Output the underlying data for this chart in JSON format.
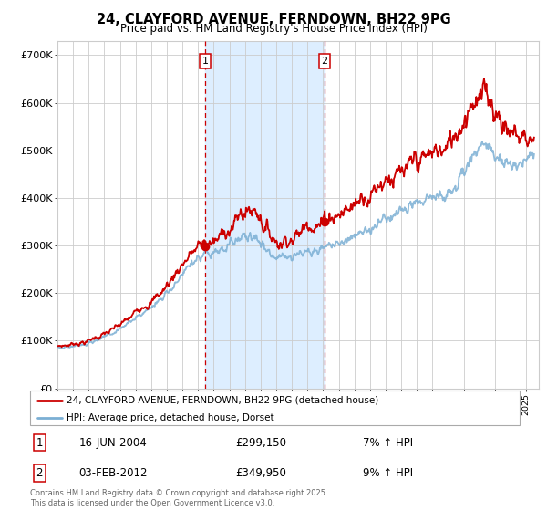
{
  "title": "24, CLAYFORD AVENUE, FERNDOWN, BH22 9PG",
  "subtitle": "Price paid vs. HM Land Registry's House Price Index (HPI)",
  "ylabel_ticks": [
    "£0",
    "£100K",
    "£200K",
    "£300K",
    "£400K",
    "£500K",
    "£600K",
    "£700K"
  ],
  "ytick_values": [
    0,
    100000,
    200000,
    300000,
    400000,
    500000,
    600000,
    700000
  ],
  "ylim": [
    0,
    730000
  ],
  "xlim_start": 1995.0,
  "xlim_end": 2025.8,
  "sale1_date": 2004.46,
  "sale1_price": 299150,
  "sale1_text": "16-JUN-2004",
  "sale1_hpi": "7% ↑ HPI",
  "sale2_date": 2012.09,
  "sale2_price": 349950,
  "sale2_text": "03-FEB-2012",
  "sale2_hpi": "9% ↑ HPI",
  "legend_line1": "24, CLAYFORD AVENUE, FERNDOWN, BH22 9PG (detached house)",
  "legend_line2": "HPI: Average price, detached house, Dorset",
  "footer": "Contains HM Land Registry data © Crown copyright and database right 2025.\nThis data is licensed under the Open Government Licence v3.0.",
  "line_color_red": "#cc0000",
  "line_color_blue": "#7bafd4",
  "vline_color": "#cc0000",
  "shade_color": "#ddeeff",
  "background_color": "#ffffff",
  "grid_color": "#cccccc",
  "hpi_key_years": [
    1995,
    1996,
    1997,
    1998,
    1999,
    2000,
    2001,
    2002,
    2003,
    2004,
    2005,
    2006,
    2007,
    2008,
    2009,
    2010,
    2011,
    2012,
    2013,
    2014,
    2015,
    2016,
    2017,
    2018,
    2019,
    2020,
    2021,
    2022,
    2023,
    2024,
    2025
  ],
  "hpi_key_vals": [
    85000,
    88000,
    95000,
    108000,
    125000,
    148000,
    170000,
    200000,
    240000,
    275000,
    285000,
    300000,
    320000,
    305000,
    275000,
    280000,
    285000,
    295000,
    305000,
    320000,
    335000,
    355000,
    375000,
    390000,
    400000,
    410000,
    450000,
    510000,
    490000,
    470000,
    480000
  ],
  "prop_key_years": [
    1995,
    1996,
    1997,
    1998,
    1999,
    2000,
    2001,
    2002,
    2003,
    2004,
    2005,
    2006,
    2007,
    2008,
    2009,
    2010,
    2011,
    2012,
    2013,
    2014,
    2015,
    2016,
    2017,
    2018,
    2019,
    2020,
    2021,
    2022,
    2023,
    2024,
    2025
  ],
  "prop_key_vals": [
    88000,
    92000,
    100000,
    115000,
    135000,
    158000,
    182000,
    215000,
    260000,
    299150,
    310000,
    335000,
    370000,
    355000,
    305000,
    315000,
    335000,
    349950,
    365000,
    385000,
    405000,
    435000,
    460000,
    480000,
    495000,
    510000,
    555000,
    620000,
    580000,
    540000,
    525000
  ]
}
